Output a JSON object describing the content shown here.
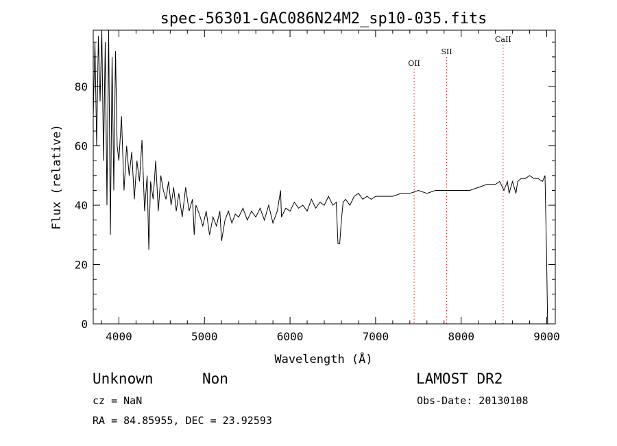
{
  "chart_data": {
    "type": "line",
    "title": "spec-56301-GAC086N24M2_sp10-035.fits",
    "xlabel": "Wavelength (Å)",
    "ylabel": "Flux (relative)",
    "xlim": [
      3700,
      9100
    ],
    "ylim": [
      0,
      99
    ],
    "xticks": [
      4000,
      5000,
      6000,
      7000,
      8000,
      9000
    ],
    "xtick_labels": [
      "4000",
      "5000",
      "6000",
      "7000",
      "8000",
      "9000"
    ],
    "yticks": [
      0,
      20,
      40,
      60,
      80
    ],
    "ytick_labels": [
      "0",
      "20",
      "40",
      "60",
      "80"
    ],
    "grid": false,
    "series": [
      {
        "x": [
          3700,
          3720,
          3740,
          3760,
          3780,
          3800,
          3820,
          3840,
          3860,
          3880,
          3900,
          3920,
          3940,
          3960,
          3980,
          4000,
          4030,
          4060,
          4090,
          4120,
          4150,
          4180,
          4210,
          4240,
          4270,
          4300,
          4330,
          4350,
          4370,
          4400,
          4430,
          4460,
          4490,
          4520,
          4550,
          4580,
          4610,
          4640,
          4670,
          4700,
          4740,
          4780,
          4820,
          4860,
          4880,
          4900,
          4940,
          4980,
          5020,
          5060,
          5100,
          5140,
          5180,
          5200,
          5240,
          5280,
          5320,
          5360,
          5400,
          5450,
          5500,
          5550,
          5600,
          5650,
          5700,
          5750,
          5800,
          5850,
          5890,
          5900,
          5950,
          6000,
          6050,
          6100,
          6150,
          6200,
          6250,
          6300,
          6350,
          6400,
          6450,
          6500,
          6540,
          6560,
          6580,
          6600,
          6620,
          6650,
          6700,
          6750,
          6800,
          6850,
          6900,
          6950,
          7000,
          7100,
          7200,
          7300,
          7400,
          7500,
          7600,
          7700,
          7800,
          7900,
          8000,
          8100,
          8200,
          8300,
          8400,
          8450,
          8500,
          8540,
          8560,
          8600,
          8640,
          8660,
          8700,
          8750,
          8800,
          8850,
          8900,
          8950,
          8980,
          9000,
          9010
        ],
        "y": [
          70,
          95,
          60,
          97,
          75,
          99,
          55,
          95,
          40,
          99,
          30,
          90,
          45,
          92,
          60,
          55,
          70,
          45,
          60,
          50,
          58,
          42,
          55,
          48,
          62,
          38,
          50,
          25,
          48,
          42,
          55,
          38,
          50,
          45,
          42,
          48,
          40,
          46,
          38,
          44,
          36,
          46,
          38,
          42,
          30,
          40,
          37,
          33,
          38,
          30,
          36,
          33,
          38,
          28,
          35,
          38,
          34,
          37,
          36,
          39,
          35,
          38,
          36,
          39,
          35,
          40,
          34,
          38,
          45,
          36,
          39,
          38,
          41,
          39,
          40,
          38,
          42,
          39,
          41,
          40,
          43,
          40,
          41,
          27,
          27,
          35,
          41,
          42,
          40,
          43,
          44,
          42,
          43,
          42,
          43,
          43,
          43,
          44,
          44,
          45,
          44,
          45,
          45,
          45,
          45,
          45,
          46,
          47,
          47,
          48,
          45,
          48,
          44,
          48,
          44,
          48,
          49,
          49,
          50,
          49,
          49,
          48,
          50,
          20,
          0
        ]
      }
    ],
    "annotations": [
      {
        "label": "OII",
        "x": 7450
      },
      {
        "label": "SII",
        "x": 7830
      },
      {
        "label": "CaII",
        "x": 8490
      }
    ]
  },
  "info": {
    "class": "Unknown",
    "subclass": "Non",
    "survey": "LAMOST DR2",
    "cz": "cz = NaN",
    "obs_date": "Obs-Date: 20130108",
    "coords": "RA =  84.85955, DEC =  23.92593"
  }
}
